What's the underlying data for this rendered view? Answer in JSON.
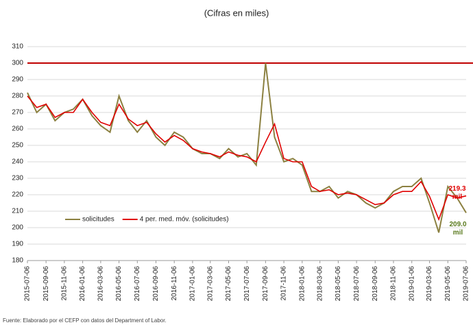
{
  "chart_data": {
    "type": "line",
    "title": "(Cifras en miles)",
    "source": "Fuente: Elaborado por el CEFP con datos del Department of Labor.",
    "x": [
      "2015-07-06",
      "2015-08-06",
      "2015-09-06",
      "2015-10-06",
      "2015-11-06",
      "2015-12-06",
      "2016-01-06",
      "2016-02-06",
      "2016-03-06",
      "2016-04-06",
      "2016-05-06",
      "2016-06-06",
      "2016-07-06",
      "2016-08-06",
      "2016-09-06",
      "2016-10-06",
      "2016-11-06",
      "2016-12-06",
      "2017-01-06",
      "2017-02-06",
      "2017-03-06",
      "2017-04-06",
      "2017-05-06",
      "2017-06-06",
      "2017-07-06",
      "2017-08-06",
      "2017-09-06",
      "2017-10-06",
      "2017-11-06",
      "2017-12-06",
      "2018-01-06",
      "2018-02-06",
      "2018-03-06",
      "2018-04-06",
      "2018-05-06",
      "2018-06-06",
      "2018-07-06",
      "2018-08-06",
      "2018-09-06",
      "2018-10-06",
      "2018-11-06",
      "2018-12-06",
      "2019-01-06",
      "2019-02-06",
      "2019-03-06",
      "2019-04-06",
      "2019-05-06",
      "2019-06-06",
      "2019-07-06"
    ],
    "series": [
      {
        "name": "solicitudes",
        "color": "#8b8040",
        "values": [
          282,
          270,
          275,
          265,
          270,
          272,
          278,
          268,
          262,
          258,
          280,
          265,
          258,
          265,
          255,
          250,
          258,
          255,
          248,
          245,
          245,
          242,
          248,
          243,
          245,
          238,
          300,
          255,
          240,
          242,
          238,
          222,
          222,
          225,
          218,
          222,
          220,
          215,
          212,
          215,
          222,
          225,
          225,
          230,
          215,
          197,
          225,
          218,
          209
        ]
      },
      {
        "name": "4 per. med. móv. (solicitudes)",
        "color": "#e00000",
        "values": [
          280,
          273,
          275,
          267,
          270,
          270,
          278,
          270,
          264,
          262,
          275,
          266,
          262,
          264,
          257,
          252,
          256,
          253,
          248,
          246,
          245,
          243,
          246,
          244,
          243,
          240,
          252,
          263,
          242,
          240,
          240,
          225,
          222,
          223,
          220,
          221,
          220,
          217,
          214,
          215,
          220,
          222,
          222,
          228,
          219,
          205,
          220,
          218,
          219.3
        ]
      }
    ],
    "reference_line": {
      "value": 300,
      "color": "#c00000"
    },
    "annotations": [
      {
        "text": "219.3",
        "unit": "mil",
        "color": "#e00000"
      },
      {
        "text": "209.0",
        "unit": "mil",
        "color": "#5a7a1e"
      }
    ],
    "xlim": [
      "2015-07-06",
      "2019-07-06"
    ],
    "xticks": [
      "2015-07-06",
      "2015-09-06",
      "2015-11-06",
      "2016-01-06",
      "2016-03-06",
      "2016-05-06",
      "2016-07-06",
      "2016-09-06",
      "2016-11-06",
      "2017-01-06",
      "2017-03-06",
      "2017-05-06",
      "2017-07-06",
      "2017-09-06",
      "2017-11-06",
      "2018-01-06",
      "2018-03-06",
      "2018-05-06",
      "2018-07-06",
      "2018-09-06",
      "2018-11-06",
      "2019-01-06",
      "2019-03-06",
      "2019-05-06",
      "2019-07-06"
    ],
    "ylim": [
      180,
      310
    ],
    "yticks": [
      180,
      190,
      200,
      210,
      220,
      230,
      240,
      250,
      260,
      270,
      280,
      290,
      300,
      310
    ],
    "grid": true,
    "legend": "lower left"
  }
}
